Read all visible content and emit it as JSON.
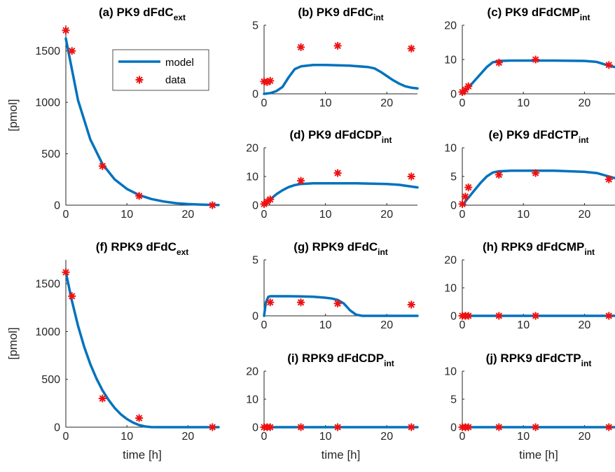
{
  "colors": {
    "model": "#0072BD",
    "data": "#EE1111",
    "axis": "#262626"
  },
  "legend": {
    "model_label": "model",
    "data_label": "data",
    "location": "top-right"
  },
  "chart_data": [
    {
      "type": "line",
      "title_main": "(a) PK9 dFdC",
      "title_sub": "ext",
      "xlabel": "",
      "ylabel": "[pmol]",
      "xlim": [
        0,
        25
      ],
      "ylim": [
        0,
        1750
      ],
      "xticks": [
        0,
        10,
        20
      ],
      "xtick_labels": [
        "0",
        "10",
        "20"
      ],
      "yticks": [
        0,
        500,
        1000,
        1500
      ],
      "ytick_labels": [
        "0",
        "500",
        "1000",
        "1500"
      ],
      "model_x": [
        0,
        2,
        4,
        6,
        8,
        10,
        12,
        14,
        16,
        18,
        20,
        22,
        24,
        25
      ],
      "model_y": [
        1620,
        1020,
        640,
        400,
        250,
        158,
        98,
        60,
        36,
        20,
        11,
        6,
        3,
        2
      ],
      "data_x": [
        0,
        1,
        6,
        12,
        24
      ],
      "data_y": [
        1700,
        1500,
        380,
        90,
        0
      ]
    },
    {
      "type": "line",
      "title_main": "(b) PK9 dFdC",
      "title_sub": "int",
      "xlabel": "",
      "ylabel": "",
      "xlim": [
        0,
        25
      ],
      "ylim": [
        0,
        5
      ],
      "xticks": [
        0,
        10,
        20
      ],
      "xtick_labels": [
        "0",
        "10",
        "20"
      ],
      "yticks": [
        0,
        5
      ],
      "ytick_labels": [
        "0",
        "5"
      ],
      "model_x": [
        0,
        1,
        2,
        3,
        4,
        5,
        6,
        8,
        10,
        14,
        17,
        18,
        19,
        20,
        21,
        22,
        23,
        24,
        25
      ],
      "model_y": [
        0,
        0.05,
        0.2,
        0.5,
        1.2,
        1.8,
        2.0,
        2.1,
        2.1,
        2.05,
        1.95,
        1.85,
        1.6,
        1.3,
        1.0,
        0.75,
        0.55,
        0.45,
        0.4
      ],
      "data_x": [
        0,
        0.5,
        1,
        6,
        12,
        24
      ],
      "data_y": [
        0.9,
        0.85,
        0.95,
        3.4,
        3.5,
        3.3
      ]
    },
    {
      "type": "line",
      "title_main": "(c) PK9 dFdCMP",
      "title_sub": "int",
      "xlabel": "",
      "ylabel": "",
      "xlim": [
        0,
        25
      ],
      "ylim": [
        0,
        20
      ],
      "xticks": [
        0,
        10,
        20
      ],
      "xtick_labels": [
        "0",
        "10",
        "20"
      ],
      "yticks": [
        0,
        10,
        20
      ],
      "ytick_labels": [
        "0",
        "10",
        "20"
      ],
      "model_x": [
        0,
        1,
        2,
        3,
        4,
        5,
        6,
        8,
        10,
        15,
        20,
        22,
        24,
        25
      ],
      "model_y": [
        0,
        1.8,
        3.8,
        5.8,
        7.8,
        9.2,
        9.6,
        9.7,
        9.7,
        9.7,
        9.6,
        9.3,
        8.2,
        7.8
      ],
      "data_x": [
        0,
        0.5,
        1,
        6,
        12,
        24
      ],
      "data_y": [
        0.5,
        1.2,
        2.2,
        9.1,
        10.0,
        8.4
      ]
    },
    {
      "type": "line",
      "title_main": "(d) PK9 dFdCDP",
      "title_sub": "int",
      "xlabel": "",
      "ylabel": "",
      "xlim": [
        0,
        25
      ],
      "ylim": [
        0,
        20
      ],
      "xticks": [
        0,
        10,
        20
      ],
      "xtick_labels": [
        "0",
        "10",
        "20"
      ],
      "yticks": [
        0,
        10,
        20
      ],
      "ytick_labels": [
        "0",
        "10",
        "20"
      ],
      "model_x": [
        0,
        1,
        2,
        3,
        4,
        5,
        6,
        8,
        10,
        15,
        20,
        22,
        24,
        25
      ],
      "model_y": [
        0,
        2.0,
        3.8,
        5.2,
        6.3,
        7.0,
        7.4,
        7.6,
        7.6,
        7.6,
        7.4,
        7.1,
        6.5,
        6.2
      ],
      "data_x": [
        0,
        0.5,
        1,
        6,
        12,
        24
      ],
      "data_y": [
        0.4,
        1.2,
        2.0,
        8.5,
        11.2,
        10.0
      ]
    },
    {
      "type": "line",
      "title_main": "(e) PK9 dFdCTP",
      "title_sub": "int",
      "xlabel": "",
      "ylabel": "",
      "xlim": [
        0,
        25
      ],
      "ylim": [
        0,
        10
      ],
      "xticks": [
        0,
        10,
        20
      ],
      "xtick_labels": [
        "0",
        "10",
        "20"
      ],
      "yticks": [
        0,
        5,
        10
      ],
      "ytick_labels": [
        "0",
        "5",
        "10"
      ],
      "model_x": [
        0,
        1,
        2,
        3,
        4,
        5,
        6,
        8,
        10,
        15,
        20,
        22,
        24,
        25
      ],
      "model_y": [
        0,
        1.3,
        2.6,
        3.9,
        5.0,
        5.7,
        5.9,
        6.0,
        6.0,
        6.0,
        5.8,
        5.6,
        5.0,
        4.7
      ],
      "data_x": [
        0,
        0.5,
        1,
        6,
        12,
        24
      ],
      "data_y": [
        0.2,
        1.5,
        3.1,
        5.3,
        5.6,
        4.5
      ]
    },
    {
      "type": "line",
      "title_main": "(f) RPK9 dFdC",
      "title_sub": "ext",
      "xlabel": "time [h]",
      "ylabel": "[pmol]",
      "xlim": [
        0,
        25
      ],
      "ylim": [
        0,
        1750
      ],
      "xticks": [
        0,
        10,
        20
      ],
      "xtick_labels": [
        "0",
        "10",
        "20"
      ],
      "yticks": [
        0,
        500,
        1000,
        1500
      ],
      "ytick_labels": [
        "0",
        "500",
        "1000",
        "1500"
      ],
      "model_x": [
        0,
        1,
        2,
        3,
        4,
        5,
        6,
        7,
        8,
        9,
        10,
        11,
        12,
        13,
        14,
        16,
        20,
        25
      ],
      "model_y": [
        1620,
        1320,
        1060,
        840,
        660,
        510,
        385,
        285,
        200,
        135,
        85,
        48,
        22,
        7,
        1,
        0,
        0,
        0
      ],
      "data_x": [
        0,
        1,
        6,
        12,
        24
      ],
      "data_y": [
        1620,
        1370,
        300,
        95,
        0
      ]
    },
    {
      "type": "line",
      "title_main": "(g) RPK9 dFdC",
      "title_sub": "int",
      "xlabel": "",
      "ylabel": "",
      "xlim": [
        0,
        25
      ],
      "ylim": [
        0,
        5
      ],
      "xticks": [
        0,
        10,
        20
      ],
      "xtick_labels": [
        "0",
        "10",
        "20"
      ],
      "yticks": [
        0,
        5
      ],
      "ytick_labels": [
        "0",
        "5"
      ],
      "model_x": [
        0,
        0.3,
        0.7,
        1,
        2,
        4,
        6,
        8,
        10,
        11,
        12,
        13,
        14,
        15,
        16,
        20,
        25
      ],
      "model_y": [
        0,
        1.2,
        1.7,
        1.75,
        1.75,
        1.75,
        1.73,
        1.7,
        1.62,
        1.55,
        1.42,
        1.1,
        0.5,
        0.1,
        0,
        0,
        0
      ],
      "data_x": [
        1,
        6,
        12,
        24
      ],
      "data_y": [
        1.2,
        1.2,
        1.1,
        1.0
      ]
    },
    {
      "type": "line",
      "title_main": "(h) RPK9 dFdCMP",
      "title_sub": "int",
      "xlabel": "",
      "ylabel": "",
      "xlim": [
        0,
        25
      ],
      "ylim": [
        0,
        20
      ],
      "xticks": [
        0,
        10,
        20
      ],
      "xtick_labels": [
        "0",
        "10",
        "20"
      ],
      "yticks": [
        0,
        10,
        20
      ],
      "ytick_labels": [
        "0",
        "10",
        "20"
      ],
      "model_x": [
        0,
        25
      ],
      "model_y": [
        0,
        0
      ],
      "data_x": [
        0,
        0.5,
        1,
        6,
        12,
        24
      ],
      "data_y": [
        0,
        0,
        0,
        0,
        0,
        0
      ]
    },
    {
      "type": "line",
      "title_main": "(i) RPK9 dFdCDP",
      "title_sub": "int",
      "xlabel": "time [h]",
      "ylabel": "",
      "xlim": [
        0,
        25
      ],
      "ylim": [
        0,
        20
      ],
      "xticks": [
        0,
        10,
        20
      ],
      "xtick_labels": [
        "0",
        "10",
        "20"
      ],
      "yticks": [
        0,
        10,
        20
      ],
      "ytick_labels": [
        "0",
        "10",
        "20"
      ],
      "model_x": [
        0,
        25
      ],
      "model_y": [
        0,
        0
      ],
      "data_x": [
        0,
        0.5,
        1,
        6,
        12,
        24
      ],
      "data_y": [
        0,
        0,
        0,
        0,
        0,
        0
      ]
    },
    {
      "type": "line",
      "title_main": "(j) RPK9 dFdCTP",
      "title_sub": "int",
      "xlabel": "time [h]",
      "ylabel": "",
      "xlim": [
        0,
        25
      ],
      "ylim": [
        0,
        10
      ],
      "xticks": [
        0,
        10,
        20
      ],
      "xtick_labels": [
        "0",
        "10",
        "20"
      ],
      "yticks": [
        0,
        5,
        10
      ],
      "ytick_labels": [
        "0",
        "5",
        "10"
      ],
      "model_x": [
        0,
        25
      ],
      "model_y": [
        0,
        0
      ],
      "data_x": [
        0,
        0.5,
        1,
        6,
        12,
        24
      ],
      "data_y": [
        0,
        0,
        0,
        0,
        0,
        0
      ]
    }
  ]
}
